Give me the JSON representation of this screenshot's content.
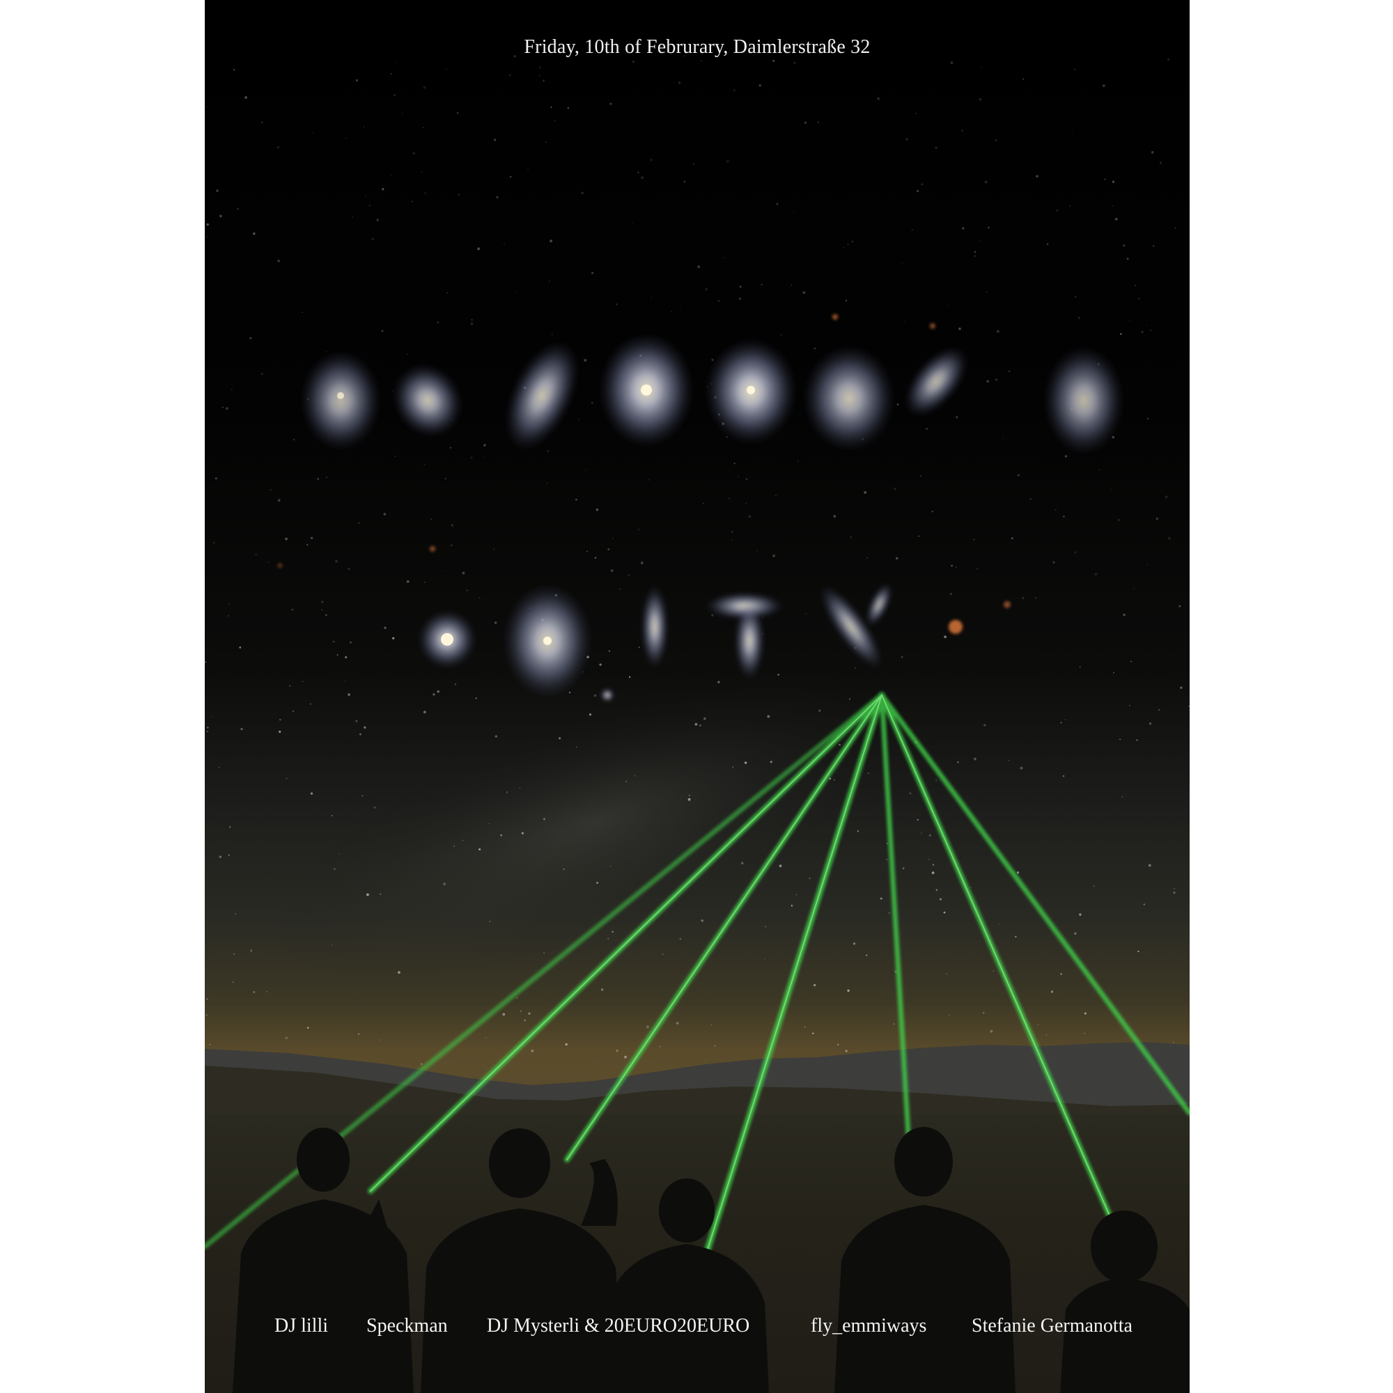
{
  "poster": {
    "header": "Friday, 10th of Februrary, Daimlerstraße 32",
    "title_art": "galaxy-letters-title",
    "colors": {
      "sky_top": "#000000",
      "horizon_glow": "#5a4a2a",
      "laser": "#3fd24a",
      "ground": "#1c1a14"
    },
    "lineup": [
      "DJ lilli",
      "Speckman",
      "DJ Mysterli & 20EURO20EURO",
      "fly_emmiways",
      "Stefanie Germanotta"
    ]
  }
}
